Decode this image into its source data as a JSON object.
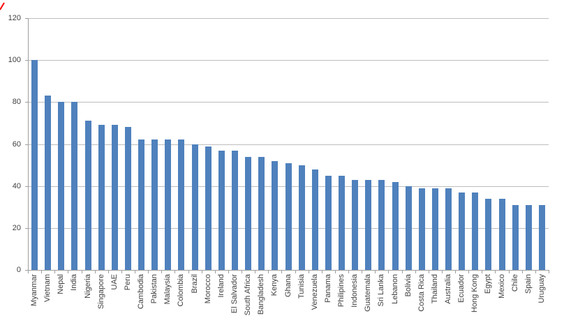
{
  "chart_data": {
    "type": "bar",
    "title": "",
    "xlabel": "",
    "ylabel": "",
    "categories": [
      "Myanmar",
      "Vietnam",
      "Nepal",
      "India",
      "Nigeria",
      "Singapore",
      "UAE",
      "Peru",
      "Cambodia",
      "Pakistan",
      "Malaysia",
      "Colombia",
      "Brazil",
      "Morocco",
      "Ireland",
      "El Salvador",
      "South Africa",
      "Bangladesh",
      "Kenya",
      "Ghana",
      "Tunisia",
      "Venezuela",
      "Panama",
      "Philipines",
      "Indonesia",
      "Guatemala",
      "Sri Lanka",
      "Lebanon",
      "Bolivia",
      "Costa Rica",
      "Thailand",
      "Australia",
      "Ecuador",
      "Hong Kong",
      "Egypt",
      "Mexico",
      "Chile",
      "Spain",
      "Uruguay"
    ],
    "values": [
      100,
      83,
      80,
      80,
      71,
      69,
      69,
      68,
      62,
      62,
      62,
      62,
      60,
      59,
      57,
      57,
      54,
      54,
      52,
      51,
      50,
      48,
      45,
      45,
      43,
      43,
      43,
      42,
      40,
      39,
      39,
      39,
      37,
      37,
      34,
      34,
      31,
      31,
      31
    ],
    "ylim": [
      0,
      120
    ],
    "yticks": [
      0,
      20,
      40,
      60,
      80,
      100,
      120
    ],
    "grid": "horizontal",
    "legend": "none",
    "bar_color": "#4F81BD",
    "gridline_color": "#bdbdbd",
    "axis_color": "#9e9e9e",
    "tick_label_color": "#3f3f3f"
  },
  "artifacts": {
    "corner_mark_color": "#ff0000"
  }
}
